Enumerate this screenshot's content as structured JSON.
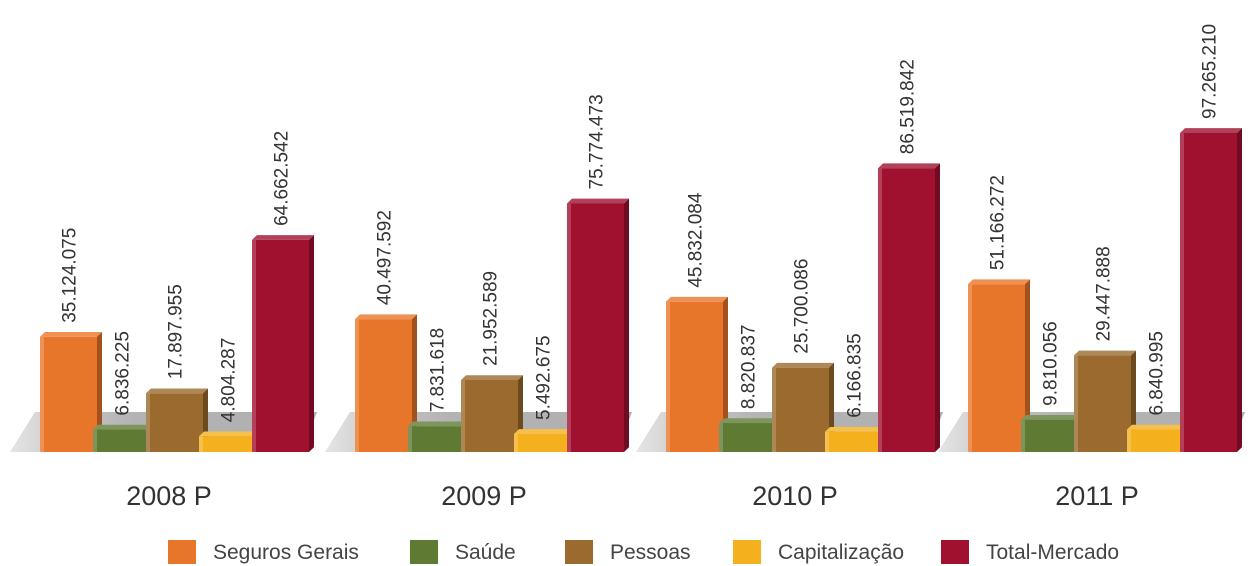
{
  "chart_data": {
    "type": "bar",
    "categories": [
      "2008 P",
      "2009 P",
      "2010 P",
      "2011 P"
    ],
    "series": [
      {
        "name": "Seguros Gerais",
        "color": "#E8762A",
        "values": [
          35124075,
          40497592,
          45832084,
          51166272
        ],
        "labels": [
          "35.124.075",
          "40.497.592",
          "45.832.084",
          "51.166.272"
        ]
      },
      {
        "name": "Saúde",
        "color": "#5E7A33",
        "values": [
          6836225,
          7831618,
          8820837,
          9810056
        ],
        "labels": [
          "6.836.225",
          "7.831.618",
          "8.820.837",
          "9.810.056"
        ]
      },
      {
        "name": "Pessoas",
        "color": "#9A6A2E",
        "values": [
          17897955,
          21952589,
          25700086,
          29447888
        ],
        "labels": [
          "17.897.955",
          "21.952.589",
          "25.700.086",
          "29.447.888"
        ]
      },
      {
        "name": "Capitalização",
        "color": "#F5B01E",
        "values": [
          4804287,
          5492675,
          6166835,
          6840995
        ],
        "labels": [
          "4.804.287",
          "5.492.675",
          "6.166.835",
          "6.840.995"
        ]
      },
      {
        "name": "Total-Mercado",
        "color": "#A0102F",
        "values": [
          64662542,
          75774473,
          86519842,
          97265210
        ],
        "labels": [
          "64.662.542",
          "75.774.473",
          "86.519.842",
          "97.265.210"
        ]
      }
    ],
    "legend_position": "bottom",
    "grid": false,
    "ylim": [
      0,
      100000000
    ]
  }
}
